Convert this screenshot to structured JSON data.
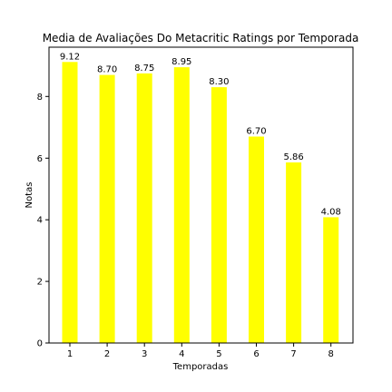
{
  "chart_data": {
    "type": "bar",
    "title": "Media de Avaliações Do Metacritic Ratings por Temporada",
    "xlabel": "Temporadas",
    "ylabel": "Notas",
    "categories": [
      "1",
      "2",
      "3",
      "4",
      "5",
      "6",
      "7",
      "8"
    ],
    "values": [
      9.12,
      8.7,
      8.75,
      8.95,
      8.3,
      6.7,
      5.86,
      4.08
    ],
    "value_labels": [
      "9.12",
      "8.70",
      "8.75",
      "8.95",
      "8.30",
      "6.70",
      "5.86",
      "4.08"
    ],
    "yticks": [
      0,
      2,
      4,
      6,
      8
    ],
    "ylim": [
      0,
      9.6
    ],
    "bar_color": "#ffff00",
    "grid": false,
    "legend": "none"
  }
}
